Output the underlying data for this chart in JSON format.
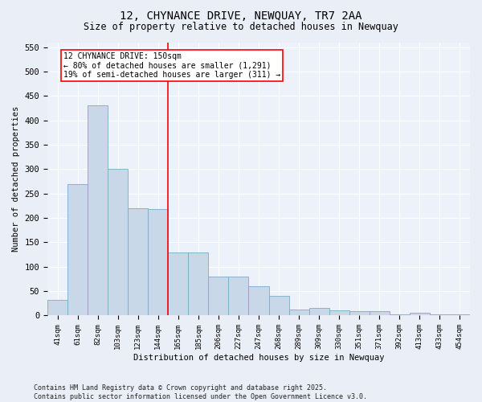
{
  "title": "12, CHYNANCE DRIVE, NEWQUAY, TR7 2AA",
  "subtitle": "Size of property relative to detached houses in Newquay",
  "xlabel": "Distribution of detached houses by size in Newquay",
  "ylabel": "Number of detached properties",
  "bar_color": "#c8d8e8",
  "bar_edge_color": "#7aaac8",
  "categories": [
    "41sqm",
    "61sqm",
    "82sqm",
    "103sqm",
    "123sqm",
    "144sqm",
    "165sqm",
    "185sqm",
    "206sqm",
    "227sqm",
    "247sqm",
    "268sqm",
    "289sqm",
    "309sqm",
    "330sqm",
    "351sqm",
    "371sqm",
    "392sqm",
    "413sqm",
    "433sqm",
    "454sqm"
  ],
  "values": [
    32,
    270,
    430,
    300,
    220,
    218,
    130,
    130,
    80,
    80,
    60,
    40,
    13,
    15,
    10,
    9,
    9,
    3,
    5,
    3,
    2
  ],
  "vline_x": 5.5,
  "vline_color": "red",
  "annotation_line1": "12 CHYNANCE DRIVE: 150sqm",
  "annotation_line2": "← 80% of detached houses are smaller (1,291)",
  "annotation_line3": "19% of semi-detached houses are larger (311) →",
  "annotation_box_color": "red",
  "annotation_fill": "white",
  "ylim": [
    0,
    560
  ],
  "yticks": [
    0,
    50,
    100,
    150,
    200,
    250,
    300,
    350,
    400,
    450,
    500,
    550
  ],
  "footer": "Contains HM Land Registry data © Crown copyright and database right 2025.\nContains public sector information licensed under the Open Government Licence v3.0.",
  "bg_color": "#eaeff7",
  "plot_bg_color": "#edf1f9",
  "grid_color": "white"
}
